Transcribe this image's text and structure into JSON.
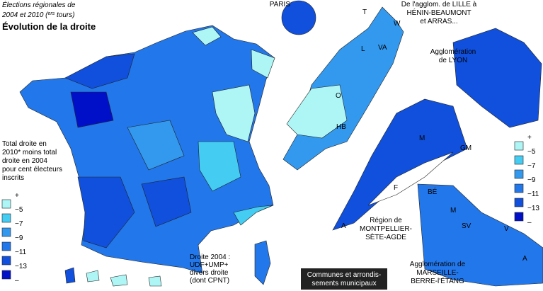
{
  "title": {
    "line1": "Élections régionales de",
    "line2_pre": "2004 et 2010 (",
    "line2_sup": "ers",
    "line2_post": " tours)"
  },
  "subtitle": "Évolution de la droite",
  "legend": {
    "description": [
      "Total droite en",
      "2010* moins total",
      "droite en 2004",
      "pour cent électeurs",
      "inscrits"
    ],
    "labels": [
      "+",
      "−5",
      "−7",
      "−9",
      "−11",
      "−13",
      "–"
    ],
    "colors": [
      "#aef6f6",
      "#44ccf2",
      "#3399ee",
      "#2277ea",
      "#1050dc",
      "#0010c8"
    ]
  },
  "note": [
    "Droite 2004 :",
    "UDF+UMP+",
    "divers droite",
    "(dont CPNT)"
  ],
  "insets": [
    {
      "label": [
        "PARIS"
      ]
    },
    {
      "label": [
        "De l'agglom. de LILLE à",
        "HÉNIN-BEAUMONT",
        "et ARRAS..."
      ]
    },
    {
      "label": [
        "Agglomération",
        "de LYON"
      ]
    },
    {
      "label": [
        "Région de",
        "MONTPELLIER-",
        "SÈTE-AGDE"
      ]
    },
    {
      "label": [
        "Agglomération de",
        "MARSEILLE-",
        "BERRE-l'ÉTANG"
      ]
    }
  ],
  "footer_box": [
    "Communes et arrondis-",
    "sements municipaux"
  ],
  "codes": [
    "T",
    "W",
    "L",
    "VA",
    "O",
    "HB",
    "M",
    "GM",
    "F",
    "A",
    "BÉ",
    "M",
    "SV",
    "V",
    "A"
  ]
}
